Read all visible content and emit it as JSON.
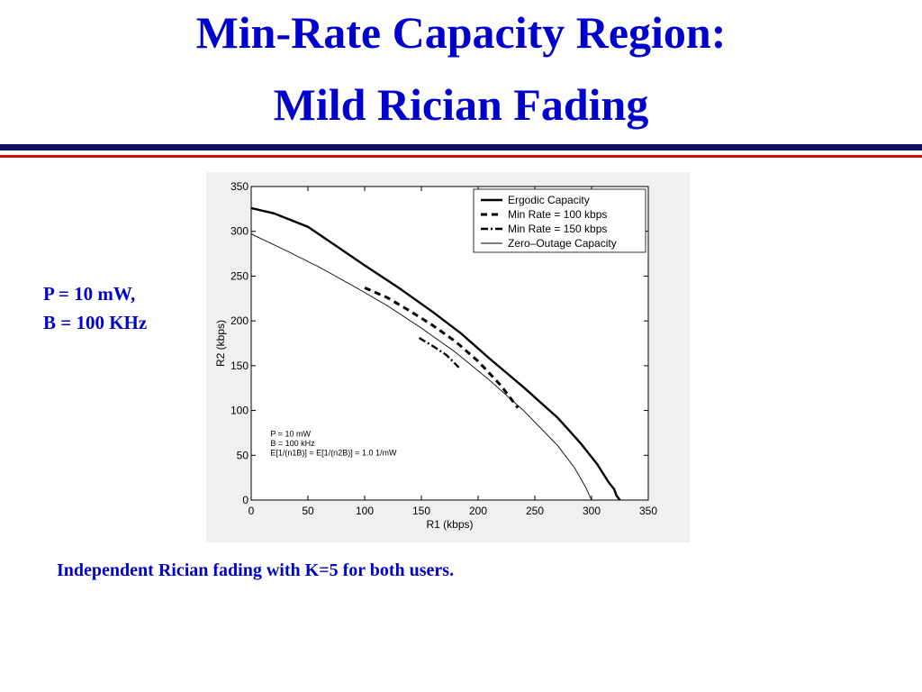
{
  "slide": {
    "title_line1": "Min-Rate Capacity Region:",
    "title_line2": "Mild Rician Fading",
    "side_line1": "P = 10 mW,",
    "side_line2": "B = 100 KHz",
    "caption": "Independent Rician fading with K=5 for both users."
  },
  "colors": {
    "title": "#0000cc",
    "rule_top": "#101060",
    "rule_bottom": "#cc1111"
  },
  "chart_data": {
    "type": "line",
    "xlabel": "R1 (kbps)",
    "ylabel": "R2 (kbps)",
    "xlim": [
      0,
      350
    ],
    "ylim": [
      0,
      350
    ],
    "xticks": [
      0,
      50,
      100,
      150,
      200,
      250,
      300,
      350
    ],
    "yticks": [
      0,
      50,
      100,
      150,
      200,
      250,
      300,
      350
    ],
    "grid": false,
    "legend_position": "top-right",
    "annotation": [
      "P = 10 mW",
      "B = 100 kHz",
      "E[1/(n1B)] = E[1/(n2B)] = 1.0 1/mW"
    ],
    "series": [
      {
        "name": "Ergodic Capacity",
        "style": "solid-thick",
        "x": [
          0,
          20,
          50,
          85,
          100,
          130,
          160,
          185,
          210,
          240,
          270,
          290,
          305,
          315,
          320,
          322,
          325
        ],
        "y": [
          326,
          320,
          305,
          275,
          262,
          237,
          210,
          186,
          158,
          126,
          92,
          64,
          40,
          20,
          12,
          5,
          0
        ]
      },
      {
        "name": "Min Rate = 100 kbps",
        "style": "dashed",
        "x": [
          100,
          120,
          140,
          160,
          180,
          200,
          220,
          235
        ],
        "y": [
          237,
          226,
          211,
          195,
          177,
          155,
          128,
          103
        ]
      },
      {
        "name": "Min Rate = 150 kbps",
        "style": "dashdot",
        "x": [
          148,
          160,
          172,
          183
        ],
        "y": [
          181,
          172,
          162,
          148
        ]
      },
      {
        "name": "Zero–Outage Capacity",
        "style": "solid-thin",
        "x": [
          0,
          30,
          60,
          90,
          120,
          150,
          180,
          210,
          240,
          270,
          285,
          295,
          300
        ],
        "y": [
          297,
          279,
          260,
          239,
          217,
          192,
          165,
          134,
          100,
          61,
          36,
          14,
          0
        ]
      }
    ]
  }
}
